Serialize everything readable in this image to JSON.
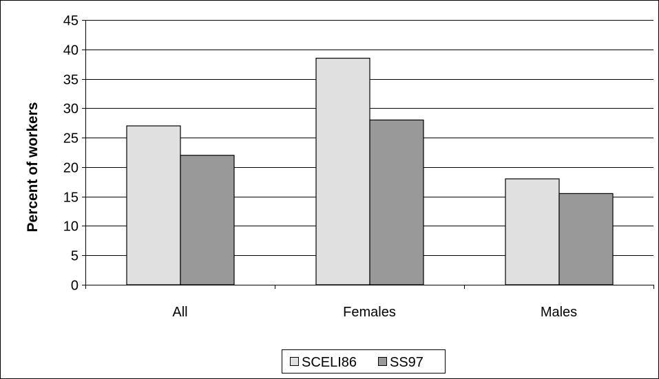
{
  "chart_data": {
    "type": "bar",
    "categories": [
      "All",
      "Females",
      "Males"
    ],
    "series": [
      {
        "name": "SCELI86",
        "values": [
          27,
          38.5,
          18
        ],
        "color": "#e0e0e0"
      },
      {
        "name": "SS97",
        "values": [
          22,
          28,
          15.5
        ],
        "color": "#999999"
      }
    ],
    "title": "",
    "xlabel": "",
    "ylabel": "Percent of workers",
    "ylim": [
      0,
      45
    ],
    "yticks": [
      "0",
      "5",
      "10",
      "15",
      "20",
      "25",
      "30",
      "35",
      "40",
      "45"
    ],
    "grid": true,
    "legend_position": "bottom"
  }
}
